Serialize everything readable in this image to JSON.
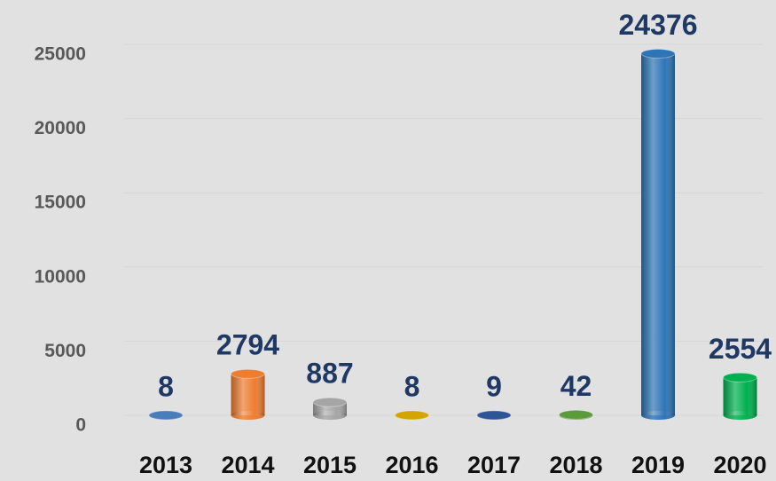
{
  "chart_data": {
    "type": "bar",
    "categories": [
      "2013",
      "2014",
      "2015",
      "2016",
      "2017",
      "2018",
      "2019",
      "2020"
    ],
    "values": [
      8,
      2794,
      887,
      8,
      9,
      42,
      24376,
      2554
    ],
    "colors": [
      "#4a7ebb",
      "#ed7d31",
      "#a5a5a5",
      "#d4a500",
      "#2f5597",
      "#5b9a3a",
      "#2e75b6",
      "#00b050"
    ],
    "ylim": [
      0,
      25000
    ],
    "yticks": [
      0,
      5000,
      10000,
      15000,
      20000,
      25000
    ],
    "grid": true
  }
}
